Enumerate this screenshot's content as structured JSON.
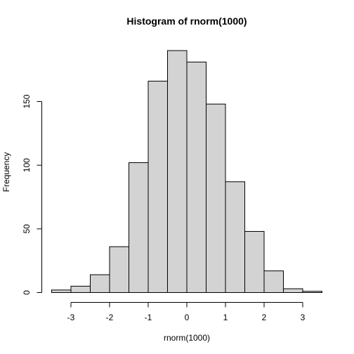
{
  "chart_data": {
    "type": "bar",
    "title": "Histogram of rnorm(1000)",
    "xlabel": "rnorm(1000)",
    "ylabel": "Frequency",
    "bin_edges": [
      -3.5,
      -3.0,
      -2.5,
      -2.0,
      -1.5,
      -1.0,
      -0.5,
      0.0,
      0.5,
      1.0,
      1.5,
      2.0,
      2.5,
      3.0,
      3.5
    ],
    "values": [
      2,
      5,
      14,
      36,
      102,
      166,
      190,
      181,
      148,
      87,
      48,
      17,
      3,
      1
    ],
    "xlim": [
      -3.5,
      3.5
    ],
    "ylim": [
      0,
      190
    ],
    "x_ticks": [
      -3,
      -2,
      -1,
      0,
      1,
      2,
      3
    ],
    "x_tick_labels": [
      "-3",
      "-2",
      "-1",
      "0",
      "1",
      "2",
      "3"
    ],
    "y_ticks": [
      0,
      50,
      100,
      150
    ],
    "y_tick_labels": [
      "0",
      "50",
      "100",
      "150"
    ],
    "bar_fill": "#d3d3d3",
    "grid": false
  }
}
